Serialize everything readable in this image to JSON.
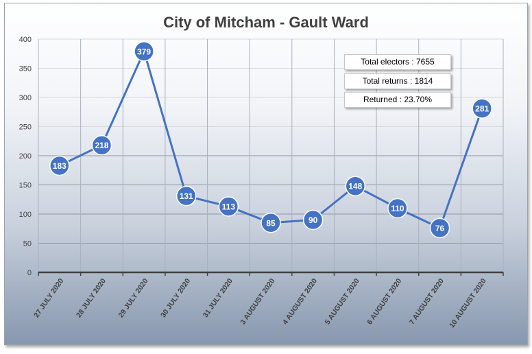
{
  "chart_data": {
    "type": "line",
    "title": "City of Mitcham - Gault Ward",
    "categories": [
      "27 JULY 2020",
      "28 JULY 2020",
      "29 JULY 2020",
      "30 JULY 2020",
      "31 JULY 2020",
      "3 AUGUST 2020",
      "4 AUGUST 2020",
      "5 AUGUST 2020",
      "6 AUGUST 2020",
      "7 AUGUST 2020",
      "10 AUGUST 2020"
    ],
    "values": [
      183,
      218,
      379,
      131,
      113,
      85,
      90,
      148,
      110,
      76,
      281
    ],
    "ylim": [
      0,
      400
    ],
    "yticks": [
      0,
      50,
      100,
      150,
      200,
      250,
      300,
      350,
      400
    ],
    "grid": true,
    "data_labels": true,
    "line_color": "#4472c4",
    "annotations": [
      "Total electors : 7655",
      "Total returns : 1814",
      "Returned : 23.70%"
    ]
  }
}
